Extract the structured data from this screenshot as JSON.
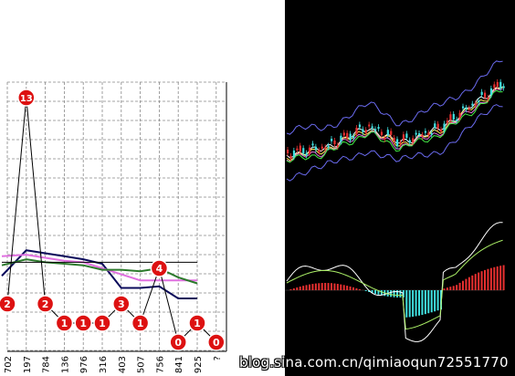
{
  "chart_data": [
    {
      "type": "line",
      "x_ticks": [
        "702",
        "197",
        "784",
        "136",
        "976",
        "316",
        "403",
        "507",
        "756",
        "841",
        "925",
        "?"
      ],
      "grid": true,
      "counts": [
        2,
        13,
        2,
        1,
        1,
        1,
        3,
        1,
        4,
        0,
        1,
        0
      ],
      "series": [
        {
          "name": "",
          "color": "#0a0a5a",
          "values": [
            3.5,
            5.2,
            5.0,
            4.8,
            4.6,
            4.3,
            2.7,
            2.7,
            2.8,
            2.0,
            2.0
          ]
        },
        {
          "name": "",
          "color": "#e070e0",
          "values": [
            4.8,
            4.9,
            4.7,
            4.5,
            4.4,
            4.0,
            3.6,
            3.2,
            3.2,
            3.2,
            3.2
          ]
        },
        {
          "name": "",
          "color": "#2c7a2c",
          "values": [
            4.2,
            4.6,
            4.4,
            4.3,
            4.2,
            3.9,
            3.9,
            3.8,
            4.0,
            3.4,
            3.0
          ]
        },
        {
          "name": "",
          "color": "#000000",
          "values": [
            4.4,
            4.4,
            4.4,
            4.4,
            4.4,
            4.4,
            4.4,
            4.4,
            4.4,
            4.4,
            4.4
          ]
        }
      ]
    },
    {
      "type": "line",
      "panel": "price-with-bands",
      "up_color": "#e83030",
      "down_color": "#40e0e0"
    },
    {
      "type": "bar",
      "panel": "macd-histogram",
      "up_color": "#e83030",
      "down_color": "#40e0e0"
    }
  ],
  "watermark": "blog.sina.com.cn/qimiaoqun72551770"
}
